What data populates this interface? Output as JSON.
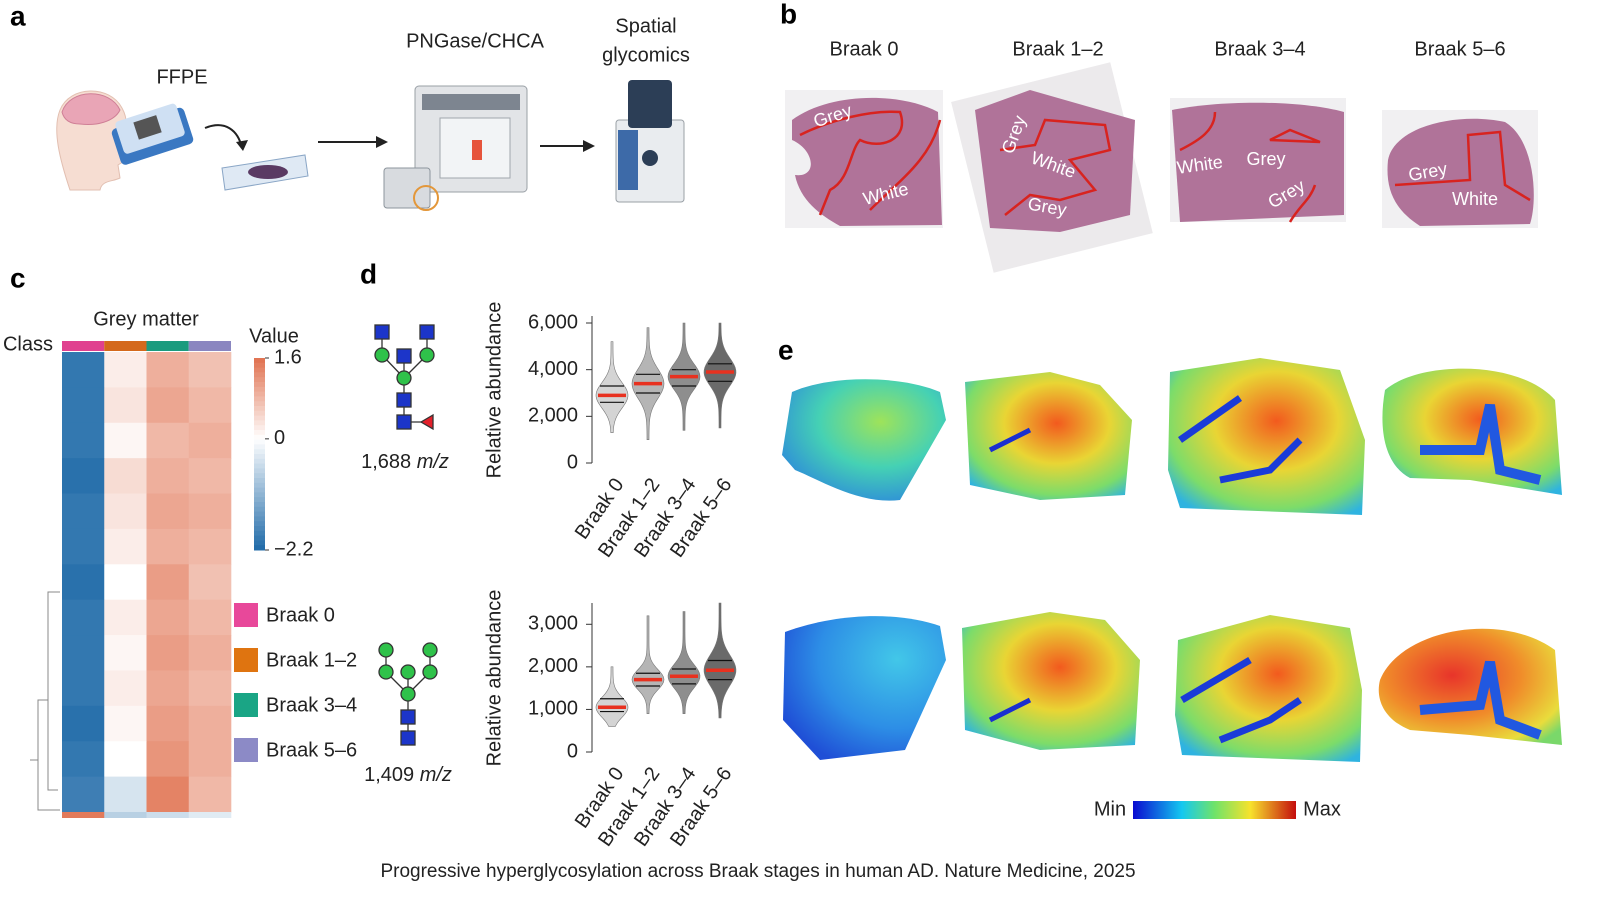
{
  "panel_labels": [
    "a",
    "b",
    "c",
    "d",
    "e"
  ],
  "workflow_labels": [
    "FFPE",
    "PNGase/CHCA",
    "Spatial",
    "glycomics"
  ],
  "histology": {
    "stages": [
      "Braak 0",
      "Braak 1–2",
      "Braak 3–4",
      "Braak 5–6"
    ],
    "region_labels": [
      [
        "Grey",
        "White"
      ],
      [
        "Grey",
        "White",
        "Grey"
      ],
      [
        "White",
        "Grey",
        "Grey"
      ],
      [
        "Grey",
        "White"
      ]
    ]
  },
  "heatmap": {
    "title": "Grey matter",
    "class_label": "Class",
    "colorbar_title": "Value",
    "colorbar_ticks": [
      1.6,
      0,
      {
        "value": -2.2,
        "label": "−2.2"
      }
    ],
    "colors": {
      "low": "#1f6aa8",
      "mid": "#ffffff",
      "high": "#e0714f"
    },
    "class_colors": [
      "#e0418f",
      "#d4691c",
      "#1b9b7e",
      "#8a86c0"
    ],
    "legend": {
      "names": [
        "Braak 0",
        "Braak 1–2",
        "Braak 3–4",
        "Braak 5–6"
      ],
      "colors": [
        "#e8489a",
        "#df7410",
        "#1aa585",
        "#8c8ac6"
      ]
    },
    "values": [
      [
        -2.0,
        0.2,
        0.9,
        0.7
      ],
      [
        -2.0,
        0.3,
        1.0,
        0.8
      ],
      [
        -2.0,
        0.1,
        0.8,
        0.9
      ],
      [
        -2.1,
        0.4,
        0.9,
        0.8
      ],
      [
        -2.0,
        0.3,
        1.0,
        0.9
      ],
      [
        -2.0,
        0.2,
        0.9,
        0.8
      ],
      [
        -2.1,
        0.0,
        1.1,
        0.7
      ],
      [
        -2.0,
        0.2,
        1.0,
        0.8
      ],
      [
        -2.0,
        0.1,
        1.1,
        0.9
      ],
      [
        -2.0,
        0.2,
        1.0,
        0.8
      ],
      [
        -2.1,
        0.1,
        1.1,
        0.9
      ],
      [
        -2.0,
        0.0,
        1.2,
        0.9
      ],
      [
        -1.9,
        -0.4,
        1.4,
        0.8
      ],
      [
        1.5,
        -0.7,
        -0.5,
        -0.3
      ]
    ]
  },
  "chart_data": [
    {
      "type": "violin",
      "mass": "1,688",
      "unit": "m/z",
      "ylabel": "Relative abundance",
      "categories": [
        "Braak 0",
        "Braak 1–2",
        "Braak 3–4",
        "Braak 5–6"
      ],
      "colors": [
        "#d4d4d4",
        "#b5b5b5",
        "#8e8e8e",
        "#6a6a6a"
      ],
      "median_color": "#e8311f",
      "min": [
        1300,
        1000,
        1400,
        1500
      ],
      "q1": [
        2600,
        3000,
        3300,
        3500
      ],
      "median": [
        2900,
        3400,
        3700,
        3900
      ],
      "q3": [
        3300,
        3800,
        4000,
        4250
      ],
      "max": [
        5200,
        5800,
        6000,
        6000
      ],
      "ylim": [
        0,
        6300
      ],
      "yticks": [
        0,
        {
          "value": 2000,
          "label": "2,000"
        },
        {
          "value": 4000,
          "label": "4,000"
        },
        {
          "value": 6000,
          "label": "6,000"
        }
      ]
    },
    {
      "type": "violin",
      "mass": "1,409",
      "unit": "m/z",
      "ylabel": "Relative abundance",
      "categories": [
        "Braak 0",
        "Braak 1–2",
        "Braak 3–4",
        "Braak 5–6"
      ],
      "colors": [
        "#d4d4d4",
        "#b5b5b5",
        "#8e8e8e",
        "#6a6a6a"
      ],
      "median_color": "#e8311f",
      "min": [
        600,
        900,
        900,
        800
      ],
      "q1": [
        950,
        1550,
        1600,
        1700
      ],
      "median": [
        1050,
        1700,
        1780,
        1920
      ],
      "q3": [
        1250,
        1850,
        1950,
        2150
      ],
      "max": [
        2000,
        3200,
        3300,
        3500
      ],
      "ylim": [
        0,
        3500
      ],
      "yticks": [
        0,
        {
          "value": 1000,
          "label": "1,000"
        },
        {
          "value": 2000,
          "label": "2,000"
        },
        {
          "value": 3000,
          "label": "3,000"
        }
      ]
    }
  ],
  "maps": {
    "colorbar_labels": [
      "Min",
      "Max"
    ]
  },
  "caption": "Progressive hyperglycosylation across Braak stages in human AD. Nature Medicine, 2025"
}
